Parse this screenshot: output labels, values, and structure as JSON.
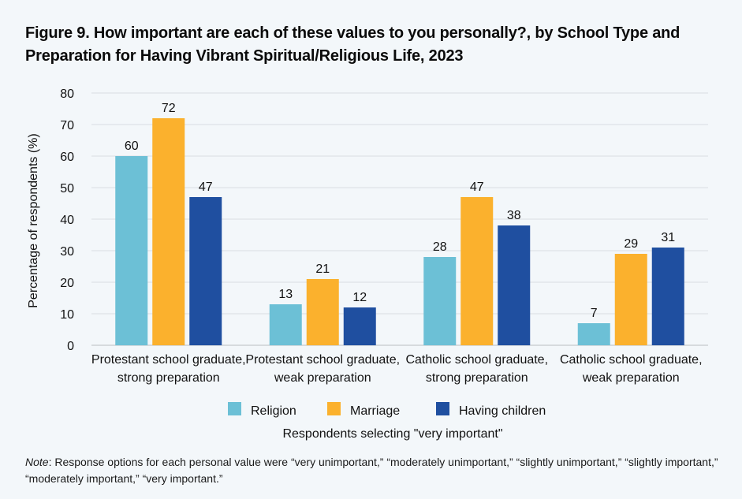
{
  "title": "Figure 9. How important are each of these values to you personally?, by School Type and Preparation for Having Vibrant Spiritual/Religious Life, 2023",
  "note": {
    "label": "Note",
    "text": ": Response options for each personal value were “very unimportant,” “moderately unimportant,” “slightly unimportant,” “slightly important,” “moderately important,” “very important.”"
  },
  "chart_data": {
    "type": "bar",
    "ylabel": "Percentage of respondents (%)",
    "xlabel": "Respondents selecting \"very important\"",
    "ylim": [
      0,
      80
    ],
    "yticks": [
      0,
      10,
      20,
      30,
      40,
      50,
      60,
      70,
      80
    ],
    "grid": true,
    "legend_position": "bottom",
    "categories": [
      [
        "Protestant school graduate,",
        "strong preparation"
      ],
      [
        "Protestant school graduate,",
        "weak preparation"
      ],
      [
        "Catholic school graduate,",
        "strong preparation"
      ],
      [
        "Catholic school graduate,",
        "weak preparation"
      ]
    ],
    "series": [
      {
        "name": "Religion",
        "color": "#6cc0d6",
        "values": [
          60,
          13,
          28,
          7
        ],
        "labels": [
          "60",
          "13",
          "28",
          "7"
        ]
      },
      {
        "name": "Marriage",
        "color": "#fbb12d",
        "values": [
          72,
          21,
          47,
          29
        ],
        "labels": [
          "72",
          "21",
          "47",
          "29"
        ]
      },
      {
        "name": "Having children",
        "color": "#1f4fa0",
        "values": [
          47,
          12,
          38,
          31
        ],
        "labels": [
          "47",
          "12",
          "38",
          "31"
        ]
      }
    ]
  }
}
